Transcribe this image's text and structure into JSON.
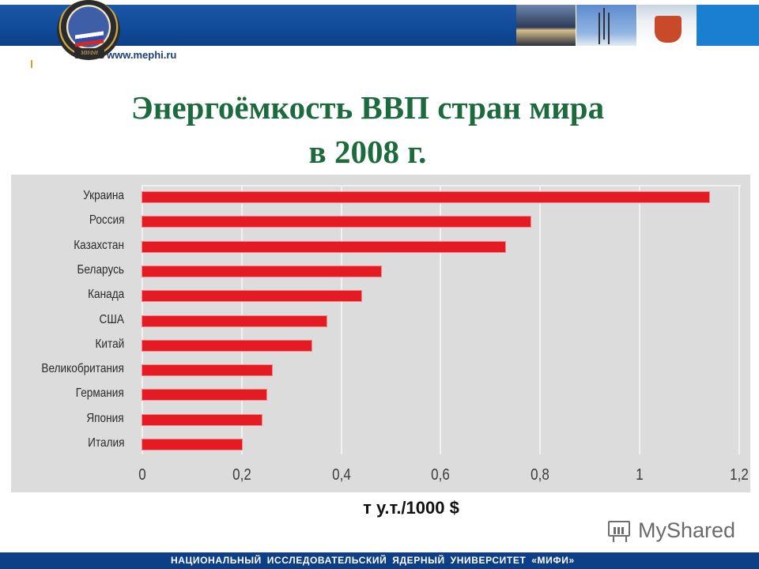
{
  "header": {
    "site_url": "www.mephi.ru",
    "logo_plate_text": "МИФИ"
  },
  "slide": {
    "title_line1": "Энергоёмкость ВВП стран мира",
    "title_line2": "в 2008 г.",
    "unit_label": "т у.т./1000 $"
  },
  "footer": {
    "text": "НАЦИОНАЛЬНЫЙ ИССЛЕДОВАТЕЛЬСКИЙ ЯДЕРНЫЙ УНИВЕРСИТЕТ «МИФИ»"
  },
  "watermark": {
    "text": "MyShared"
  },
  "colors": {
    "bar": "#e41b23",
    "title": "#1d6a3e",
    "header_blue": "#0d3f86",
    "chart_bg": "#dcdcdd"
  },
  "chart_data": {
    "type": "bar",
    "orientation": "horizontal",
    "title": "Энергоёмкость ВВП стран мира в 2008 г.",
    "xlabel": "т у.т./1000 $",
    "ylabel": "",
    "categories": [
      "Украина",
      "Россия",
      "Казахстан",
      "Беларусь",
      "Канада",
      "США",
      "Китай",
      "Великобритания",
      "Германия",
      "Япония",
      "Италия"
    ],
    "values": [
      1.14,
      0.78,
      0.73,
      0.48,
      0.44,
      0.37,
      0.34,
      0.26,
      0.25,
      0.24,
      0.2
    ],
    "xlim": [
      0,
      1.2
    ],
    "x_ticks": [
      "0",
      "0,2",
      "0,4",
      "0,6",
      "0,8",
      "1",
      "1,2"
    ],
    "grid": true,
    "legend": null
  }
}
